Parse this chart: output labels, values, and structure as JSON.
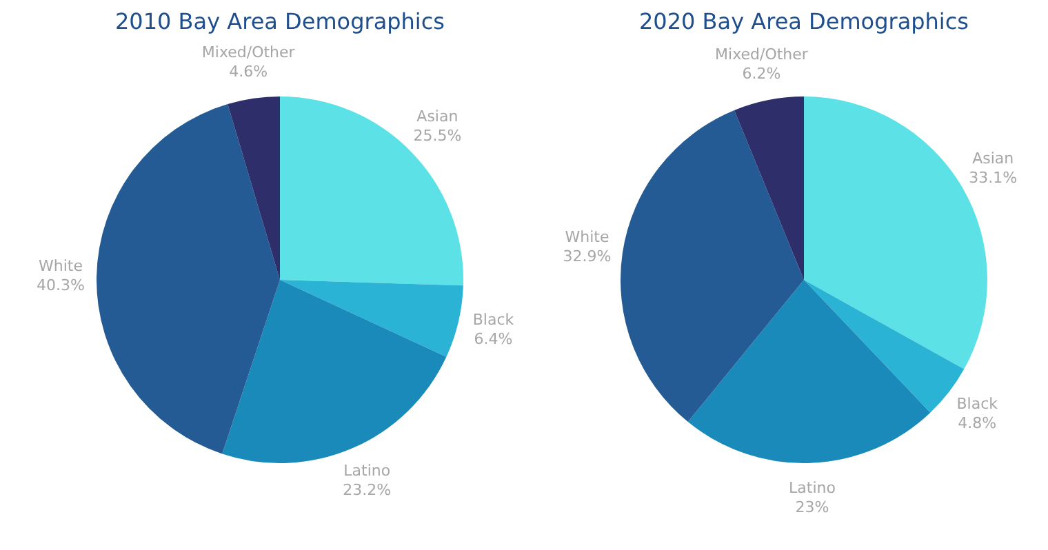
{
  "chart_data": [
    {
      "type": "pie",
      "title": "2010 Bay Area Demographics",
      "categories": [
        "Asian",
        "Black",
        "Latino",
        "White",
        "Mixed/Other"
      ],
      "values": [
        25.5,
        6.4,
        23.2,
        40.3,
        4.6
      ],
      "value_labels": [
        "25.5%",
        "6.4%",
        "23.2%",
        "40.3%",
        "4.6%"
      ],
      "colors": [
        "#5ce1e6",
        "#2ab3d4",
        "#1a8abb",
        "#245b94",
        "#2e2e6b"
      ],
      "legend": false
    },
    {
      "type": "pie",
      "title": "2020 Bay Area Demographics",
      "categories": [
        "Asian",
        "Black",
        "Latino",
        "White",
        "Mixed/Other"
      ],
      "values": [
        33.1,
        4.8,
        23,
        32.9,
        6.2
      ],
      "value_labels": [
        "33.1%",
        "4.8%",
        "23%",
        "32.9%",
        "6.2%"
      ],
      "colors": [
        "#5ce1e6",
        "#2ab3d4",
        "#1a8abb",
        "#245b94",
        "#2e2e6b"
      ],
      "legend": false
    }
  ]
}
